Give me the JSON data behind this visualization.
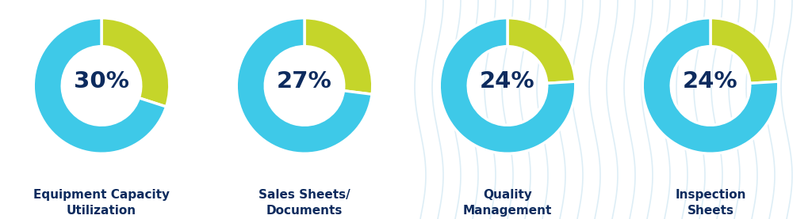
{
  "charts": [
    {
      "pct": 30,
      "label": "Equipment Capacity\nUtilization"
    },
    {
      "pct": 27,
      "label": "Sales Sheets/\nDocuments"
    },
    {
      "pct": 24,
      "label": "Quality\nManagement"
    },
    {
      "pct": 24,
      "label": "Inspection\nSheets"
    }
  ],
  "color_main": "#3EC9E8",
  "color_accent": "#C5D52A",
  "color_text": "#0D2B5E",
  "color_bg": "#FFFFFF",
  "donut_width": 0.42,
  "start_angle": 90,
  "pct_fontsize": 21,
  "label_fontsize": 11,
  "wave_color": "#D8EBF5"
}
